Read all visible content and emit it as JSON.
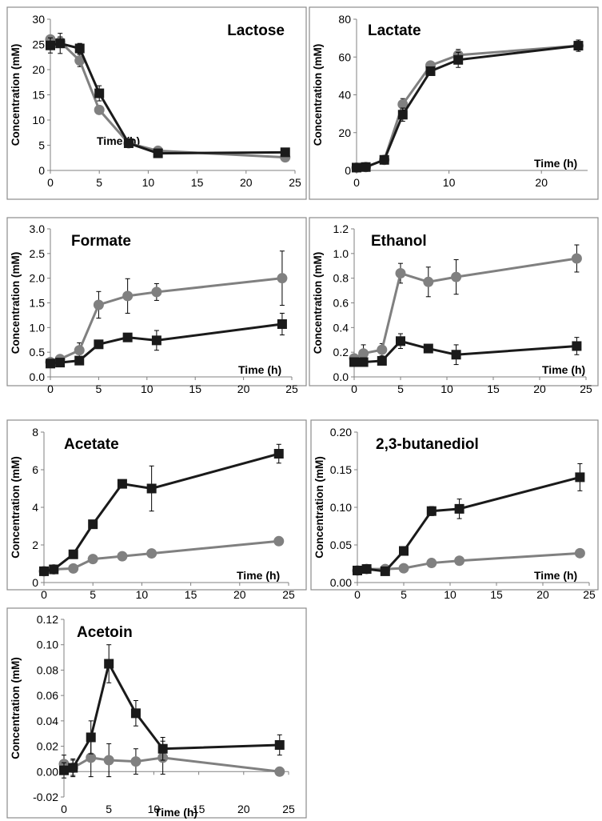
{
  "chart_data": [
    {
      "type": "line",
      "title": "Lactose",
      "xlabel": "Time (h)",
      "ylabel": "Concentration (mM)",
      "xlim": [
        0,
        25
      ],
      "ylim": [
        0,
        30
      ],
      "x_ticks": [
        "0",
        "5",
        "10",
        "15",
        "20",
        "25"
      ],
      "y_ticks": [
        "0",
        "5",
        "10",
        "15",
        "20",
        "25",
        "30"
      ],
      "grid": false,
      "series": [
        {
          "marker": "square",
          "color": "#1a1a1a",
          "x": [
            0,
            1,
            3,
            5,
            8,
            11,
            24
          ],
          "y": [
            24.8,
            25.2,
            24.2,
            15.3,
            5.4,
            3.4,
            3.6
          ],
          "err": [
            1.5,
            2.0,
            1.0,
            1.5,
            0.5,
            0.4,
            0.4
          ]
        },
        {
          "marker": "circle",
          "color": "#808080",
          "x": [
            0,
            1,
            3,
            5,
            8,
            11,
            24
          ],
          "y": [
            26.0,
            25.5,
            21.8,
            12.0,
            5.4,
            3.9,
            2.6
          ],
          "err": [
            0.6,
            1.0,
            1.2,
            0.6,
            0.4,
            0.4,
            0.4
          ]
        }
      ]
    },
    {
      "type": "line",
      "title": "Lactate",
      "xlabel": "Time (h)",
      "ylabel": "Concentration (mM)",
      "xlim": [
        0,
        25
      ],
      "ylim": [
        0,
        80
      ],
      "x_ticks": [
        "0",
        "10",
        "20"
      ],
      "y_ticks": [
        "0",
        "20",
        "40",
        "60",
        "80"
      ],
      "grid": false,
      "series": [
        {
          "marker": "square",
          "color": "#1a1a1a",
          "x": [
            0,
            1,
            3,
            5,
            8,
            11,
            24
          ],
          "y": [
            1.5,
            1.8,
            5.6,
            29.5,
            52.5,
            58.5,
            66.0
          ],
          "err": [
            0.5,
            0.5,
            0.5,
            3.5,
            2.0,
            4.0,
            3.0
          ]
        },
        {
          "marker": "circle",
          "color": "#808080",
          "x": [
            0,
            1,
            3,
            5,
            8,
            11,
            24
          ],
          "y": [
            1.5,
            1.8,
            5.6,
            35.0,
            55.5,
            61.0,
            66.0
          ],
          "err": [
            0.5,
            0.5,
            0.5,
            3.0,
            2.0,
            3.0,
            2.0
          ]
        }
      ]
    },
    {
      "type": "line",
      "title": "Formate",
      "xlabel": "Time (h)",
      "ylabel": "Concentration (mM)",
      "xlim": [
        0,
        25
      ],
      "ylim": [
        0,
        3
      ],
      "x_ticks": [
        "0",
        "5",
        "10",
        "15",
        "20",
        "25"
      ],
      "y_ticks": [
        "0.0",
        "0.5",
        "1.0",
        "1.5",
        "2.0",
        "2.5",
        "3.0"
      ],
      "grid": false,
      "series": [
        {
          "marker": "square",
          "color": "#1a1a1a",
          "x": [
            0,
            1,
            3,
            5,
            8,
            11,
            24
          ],
          "y": [
            0.27,
            0.29,
            0.33,
            0.66,
            0.8,
            0.74,
            1.07
          ],
          "err": [
            0.02,
            0.03,
            0.05,
            0.08,
            0.08,
            0.2,
            0.22
          ]
        },
        {
          "marker": "circle",
          "color": "#808080",
          "x": [
            0,
            1,
            3,
            5,
            8,
            11,
            24
          ],
          "y": [
            0.3,
            0.36,
            0.54,
            1.46,
            1.64,
            1.72,
            2.0
          ],
          "err": [
            0.05,
            0.05,
            0.15,
            0.27,
            0.35,
            0.17,
            0.55
          ]
        }
      ]
    },
    {
      "type": "line",
      "title": "Ethanol",
      "xlabel": "Time (h)",
      "ylabel": "Concentration (mM)",
      "xlim": [
        0,
        25
      ],
      "ylim": [
        0,
        1.2
      ],
      "x_ticks": [
        "0",
        "5",
        "10",
        "15",
        "20",
        "25"
      ],
      "y_ticks": [
        "0.0",
        "0.2",
        "0.4",
        "0.6",
        "0.8",
        "1.0",
        "1.2"
      ],
      "grid": false,
      "series": [
        {
          "marker": "square",
          "color": "#1a1a1a",
          "x": [
            0,
            1,
            3,
            5,
            8,
            11,
            24
          ],
          "y": [
            0.12,
            0.12,
            0.13,
            0.29,
            0.23,
            0.18,
            0.25
          ],
          "err": [
            0.02,
            0.03,
            0.02,
            0.06,
            0.03,
            0.08,
            0.07
          ]
        },
        {
          "marker": "circle",
          "color": "#808080",
          "x": [
            0,
            1,
            3,
            5,
            8,
            11,
            24
          ],
          "y": [
            0.15,
            0.19,
            0.22,
            0.84,
            0.77,
            0.81,
            0.96
          ],
          "err": [
            0.03,
            0.07,
            0.05,
            0.08,
            0.12,
            0.14,
            0.11
          ]
        }
      ]
    },
    {
      "type": "line",
      "title": "Acetate",
      "xlabel": "Time (h)",
      "ylabel": "Concentration (mM)",
      "xlim": [
        0,
        25
      ],
      "ylim": [
        0,
        8
      ],
      "x_ticks": [
        "0",
        "5",
        "10",
        "15",
        "20",
        "25"
      ],
      "y_ticks": [
        "0",
        "2",
        "4",
        "6",
        "8"
      ],
      "grid": false,
      "series": [
        {
          "marker": "square",
          "color": "#1a1a1a",
          "x": [
            0,
            1,
            3,
            5,
            8,
            11,
            24
          ],
          "y": [
            0.6,
            0.7,
            1.5,
            3.1,
            5.25,
            5.0,
            6.85
          ],
          "err": [
            0.1,
            0.1,
            0.1,
            0.2,
            0.2,
            1.2,
            0.5
          ]
        },
        {
          "marker": "circle",
          "color": "#808080",
          "x": [
            0,
            1,
            3,
            5,
            8,
            11,
            24
          ],
          "y": [
            0.6,
            0.7,
            0.75,
            1.25,
            1.4,
            1.55,
            2.2
          ],
          "err": [
            0.05,
            0.05,
            0.05,
            0.1,
            0.1,
            0.1,
            0.15
          ]
        }
      ]
    },
    {
      "type": "line",
      "title": "2,3-butanediol",
      "xlabel": "Time (h)",
      "ylabel": "Concentration (mM)",
      "xlim": [
        0,
        25
      ],
      "ylim": [
        0,
        0.2
      ],
      "x_ticks": [
        "0",
        "5",
        "10",
        "15",
        "20",
        "25"
      ],
      "y_ticks": [
        "0.00",
        "0.05",
        "0.10",
        "0.15",
        "0.20"
      ],
      "grid": false,
      "series": [
        {
          "marker": "square",
          "color": "#1a1a1a",
          "x": [
            0,
            1,
            3,
            5,
            8,
            11,
            24
          ],
          "y": [
            0.016,
            0.018,
            0.015,
            0.042,
            0.095,
            0.098,
            0.14
          ],
          "err": [
            0.002,
            0.002,
            0.002,
            0.003,
            0.006,
            0.013,
            0.018
          ]
        },
        {
          "marker": "circle",
          "color": "#808080",
          "x": [
            0,
            1,
            3,
            5,
            8,
            11,
            24
          ],
          "y": [
            0.016,
            0.018,
            0.018,
            0.019,
            0.026,
            0.029,
            0.039
          ],
          "err": [
            0.002,
            0.002,
            0.002,
            0.002,
            0.002,
            0.002,
            0.002
          ]
        }
      ]
    },
    {
      "type": "line",
      "title": "Acetoin",
      "xlabel": "Time (h)",
      "ylabel": "Concentration (mM)",
      "xlim": [
        0,
        25
      ],
      "ylim": [
        -0.02,
        0.12
      ],
      "x_ticks": [
        "0",
        "5",
        "10",
        "15",
        "20",
        "25"
      ],
      "y_ticks": [
        "-0.02",
        "0.00",
        "0.02",
        "0.04",
        "0.06",
        "0.08",
        "0.10",
        "0.12"
      ],
      "grid": false,
      "series": [
        {
          "marker": "square",
          "color": "#1a1a1a",
          "x": [
            0,
            1,
            3,
            5,
            8,
            11,
            24
          ],
          "y": [
            0.001,
            0.003,
            0.027,
            0.085,
            0.046,
            0.018,
            0.021
          ],
          "err": [
            0.006,
            0.006,
            0.013,
            0.015,
            0.01,
            0.009,
            0.008
          ]
        },
        {
          "marker": "circle",
          "color": "#808080",
          "x": [
            0,
            1,
            3,
            5,
            8,
            11,
            24
          ],
          "y": [
            0.006,
            0.003,
            0.011,
            0.009,
            0.008,
            0.011,
            0.0
          ],
          "err": [
            0.007,
            0.007,
            0.015,
            0.013,
            0.01,
            0.013,
            0.002
          ]
        }
      ]
    }
  ]
}
